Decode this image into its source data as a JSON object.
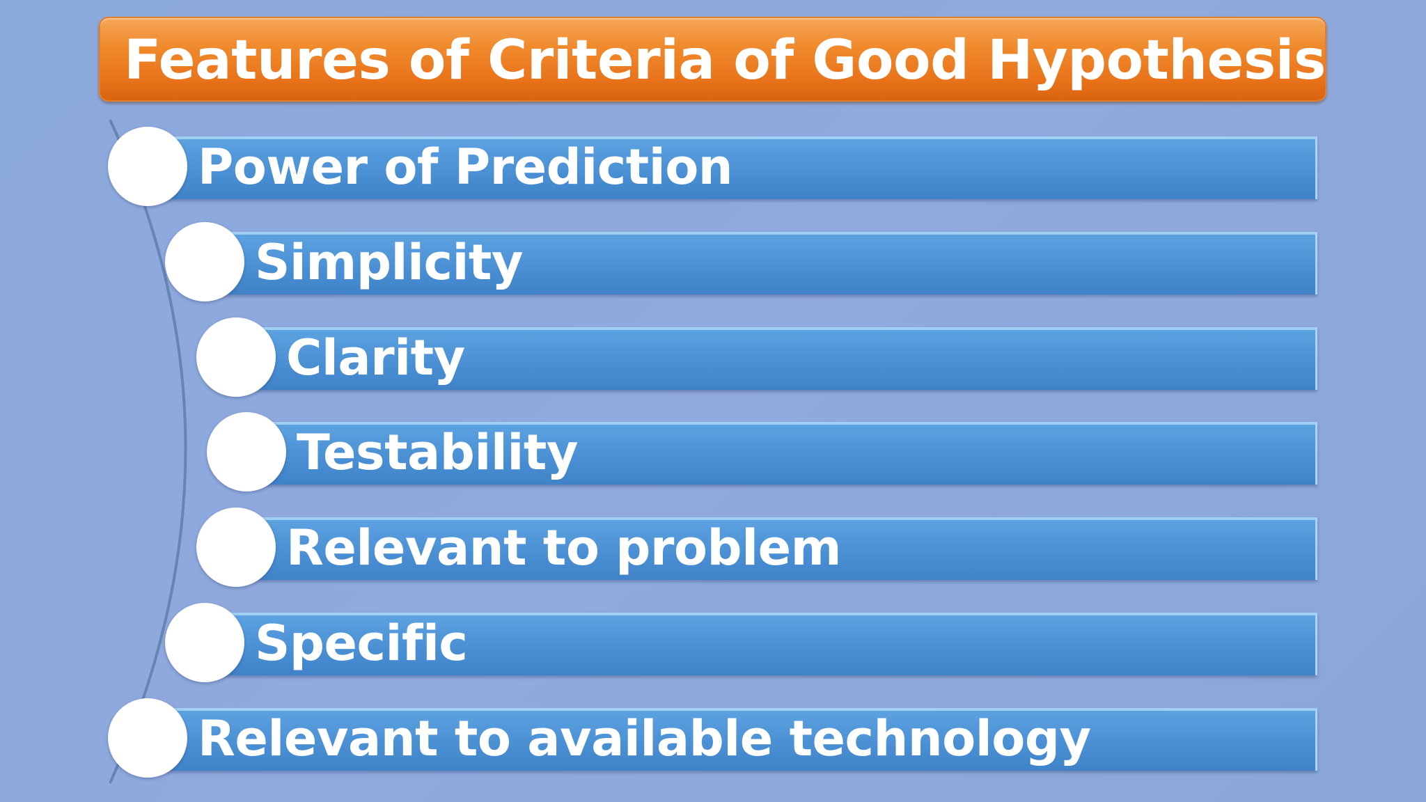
{
  "title": "Features of Criteria of Good Hypothesis",
  "colors": {
    "background": "#8faadc",
    "title_bar": "#f08a2c",
    "item_bar": "#4d93d6",
    "bullet": "#ffffff"
  },
  "items": [
    {
      "label": "Power of Prediction"
    },
    {
      "label": "Simplicity"
    },
    {
      "label": "Clarity"
    },
    {
      "label": "Testability"
    },
    {
      "label": "Relevant to problem"
    },
    {
      "label": "Specific"
    },
    {
      "label": "Relevant to available technology"
    }
  ]
}
